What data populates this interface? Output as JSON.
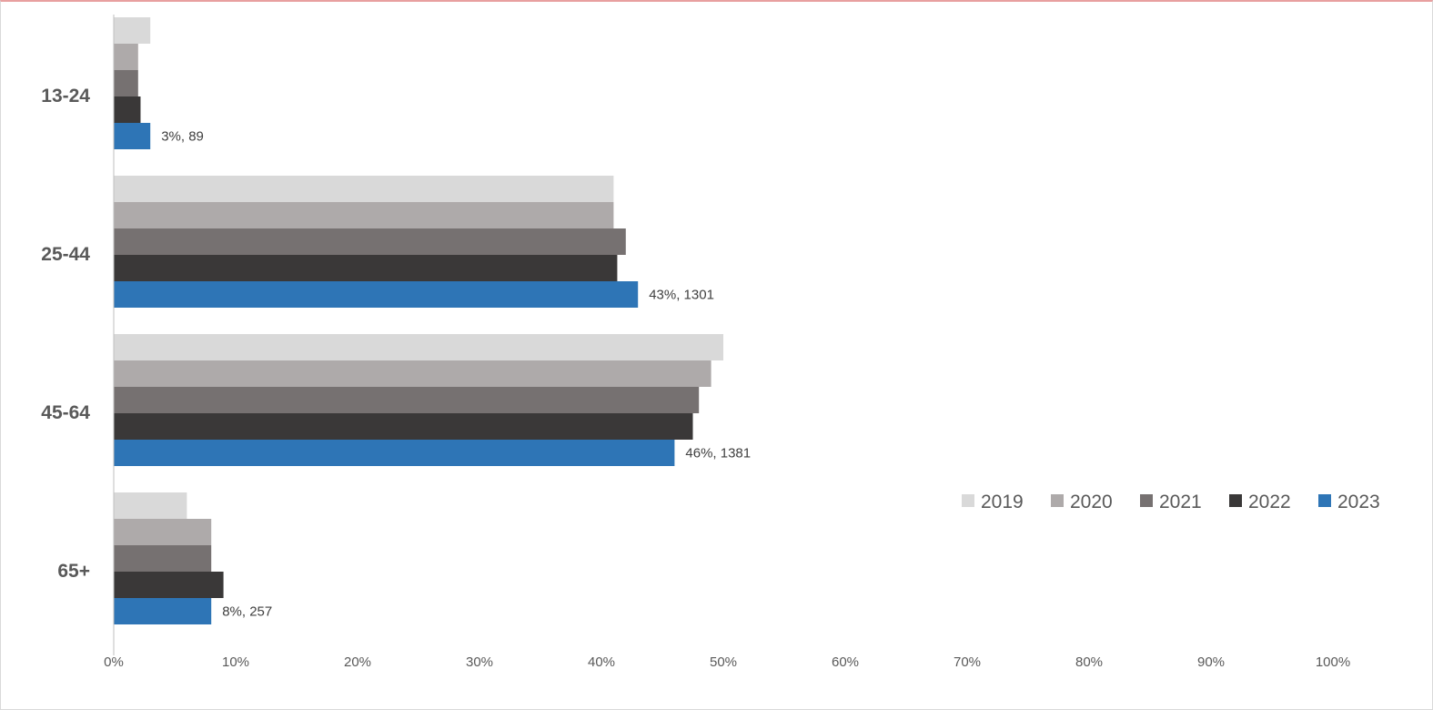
{
  "chart_data": {
    "type": "bar",
    "orientation": "horizontal",
    "categories": [
      "13-24",
      "25-44",
      "45-64",
      "65+"
    ],
    "series": [
      {
        "name": "2019",
        "color": "#d9d9d9",
        "values": [
          3,
          41,
          50,
          6
        ]
      },
      {
        "name": "2020",
        "color": "#aeaaaa",
        "values": [
          2,
          41,
          49,
          8
        ]
      },
      {
        "name": "2021",
        "color": "#767171",
        "values": [
          2,
          42,
          48,
          8
        ]
      },
      {
        "name": "2022",
        "color": "#3a3838",
        "values": [
          2.2,
          41.3,
          47.5,
          9
        ]
      },
      {
        "name": "2023",
        "color": "#2e75b6",
        "values": [
          3,
          43,
          46,
          8
        ]
      }
    ],
    "data_labels": {
      "series": "2023",
      "labels": [
        "3%, 89",
        "43%, 1301",
        "46%, 1381",
        "8%, 257"
      ]
    },
    "xlim": [
      0,
      100
    ],
    "x_ticks": [
      0,
      10,
      20,
      30,
      40,
      50,
      60,
      70,
      80,
      90,
      100
    ],
    "x_tick_labels": [
      "0%",
      "10%",
      "20%",
      "30%",
      "40%",
      "50%",
      "60%",
      "70%",
      "80%",
      "90%",
      "100%"
    ],
    "xlabel": "",
    "ylabel": "",
    "title": "",
    "grid": false,
    "legend_position": "right"
  }
}
